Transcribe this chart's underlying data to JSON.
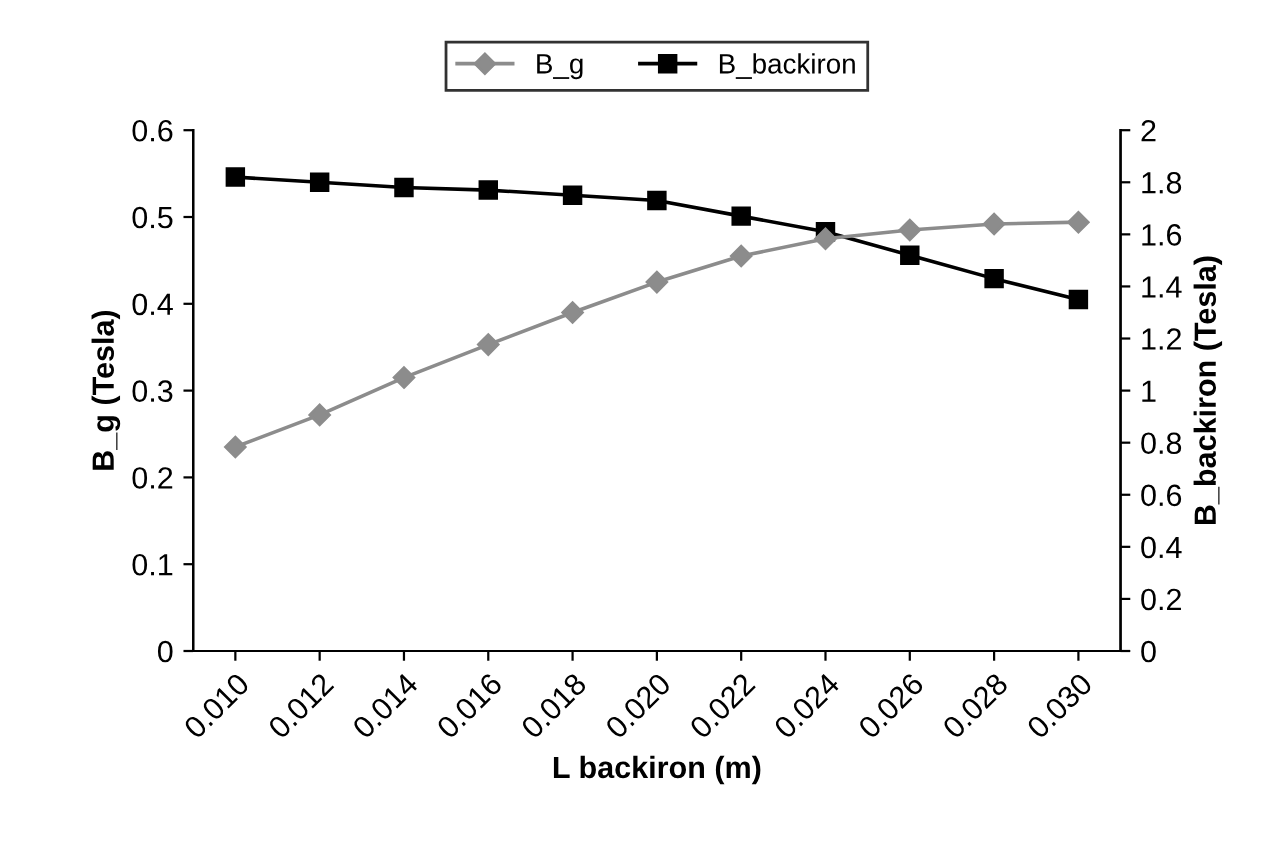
{
  "chart_data": {
    "type": "line",
    "xlabel": "L backiron (m)",
    "ylabel": "B_g (Tesla)",
    "y2label": "B_backiron (Tesla)",
    "categories": [
      "0.010",
      "0.012",
      "0.014",
      "0.016",
      "0.018",
      "0.020",
      "0.022",
      "0.024",
      "0.026",
      "0.028",
      "0.030"
    ],
    "series": [
      {
        "name": "B_g",
        "color": "#8c8c8c",
        "marker": "diamond",
        "values": [
          0.235,
          0.272,
          0.315,
          0.353,
          0.39,
          0.425,
          0.455,
          0.475,
          0.485,
          0.492,
          0.494
        ]
      },
      {
        "name": "B_backiron",
        "color": "#000000",
        "marker": "square",
        "axis": "y2",
        "values": [
          1.82,
          1.8,
          1.78,
          1.77,
          1.75,
          1.73,
          1.67,
          1.61,
          1.52,
          1.43,
          1.35
        ]
      }
    ],
    "ylim": [
      0,
      0.6
    ],
    "yticks": [
      0,
      0.1,
      0.2,
      0.3,
      0.4,
      0.5,
      0.6
    ],
    "y2lim": [
      0,
      2
    ],
    "y2ticks": [
      0,
      0.2,
      0.4,
      0.6,
      0.8,
      1,
      1.2,
      1.4,
      1.6,
      1.8,
      2
    ],
    "grid": false,
    "legend": "top"
  }
}
